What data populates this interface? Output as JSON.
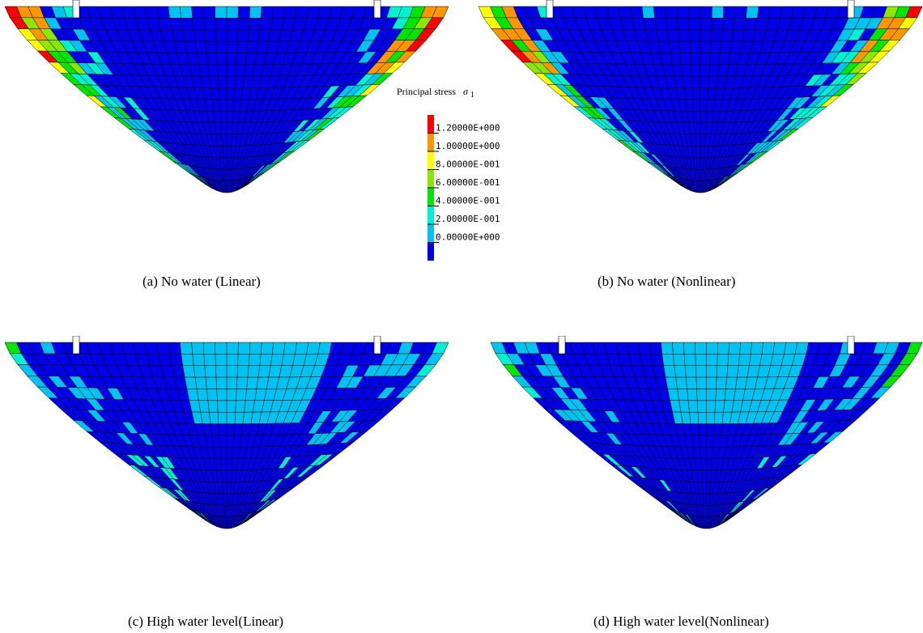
{
  "colors": {
    "blue": "#0000e6",
    "light_blue": "#00c3f0",
    "cyan": "#00f0d2",
    "green": "#00e600",
    "light_green": "#8ce600",
    "yellow": "#ffff00",
    "orange": "#ff9600",
    "red": "#ff0000",
    "mesh_line": "#000000"
  },
  "legend": {
    "title": "Principal stress",
    "symbol": "σ",
    "subscript": "1",
    "ticks": [
      "1.20000E+000",
      "1.00000E+000",
      "8.00000E-001",
      "6.00000E-001",
      "4.00000E-001",
      "2.00000E-001",
      "0.00000E+000"
    ],
    "levels": [
      {
        "min": 1.2,
        "color": "#ff0000"
      },
      {
        "min": 1.0,
        "color": "#ff9600"
      },
      {
        "min": 0.8,
        "color": "#ffff00"
      },
      {
        "min": 0.6,
        "color": "#8ce600"
      },
      {
        "min": 0.4,
        "color": "#00e600"
      },
      {
        "min": 0.2,
        "color": "#00f0d2"
      },
      {
        "min": 0.0,
        "color": "#00c3f0"
      },
      {
        "min": -1.0,
        "color": "#0000e6"
      }
    ]
  },
  "panels": [
    {
      "id": "a",
      "caption": "(a) No water (Linear)",
      "case": "no-water",
      "model": "Linear"
    },
    {
      "id": "b",
      "caption": "(b) No water (Nonlinear)",
      "case": "no-water",
      "model": "Nonlinear"
    },
    {
      "id": "c",
      "caption": "(c) High water level(Linear)",
      "case": "high-water",
      "model": "Linear"
    },
    {
      "id": "d",
      "caption": "(d) High water level(Nonlinear)",
      "case": "high-water",
      "model": "Nonlinear"
    }
  ]
}
